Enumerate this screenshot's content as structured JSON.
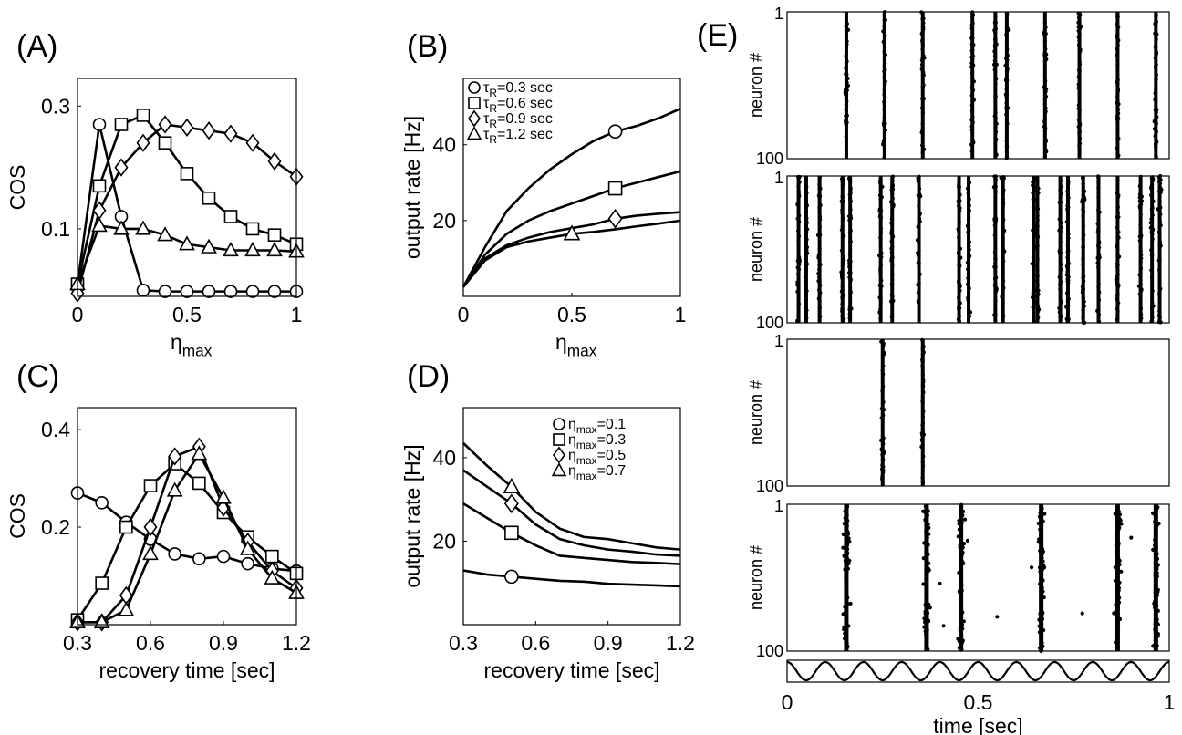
{
  "panels": {
    "A": "(A)",
    "B": "(B)",
    "C": "(C)",
    "D": "(D)",
    "E": "(E)"
  },
  "chart_data": [
    {
      "id": "A",
      "type": "line",
      "ylabel": "COS",
      "xlabel_base": "η",
      "xlabel_sub": "max",
      "xlim": [
        0,
        1
      ],
      "ylim": [
        -0.01,
        0.345
      ],
      "xticks": [
        {
          "v": 0,
          "label": "0"
        },
        {
          "v": 0.5,
          "label": "0.5"
        },
        {
          "v": 1,
          "label": "1"
        }
      ],
      "yticks": [
        {
          "v": 0.1,
          "label": "0.1"
        },
        {
          "v": 0.3,
          "label": "0.3"
        }
      ],
      "marker_type": "param",
      "series": [
        {
          "marker": "circle",
          "x": [
            0,
            0.1,
            0.2,
            0.3,
            0.4,
            0.5,
            0.6,
            0.7,
            0.8,
            0.9,
            1.0
          ],
          "y": [
            0.01,
            0.27,
            0.12,
            0.0,
            -0.002,
            -0.002,
            -0.002,
            -0.002,
            -0.002,
            -0.002,
            -0.002
          ]
        },
        {
          "marker": "square",
          "x": [
            0,
            0.1,
            0.2,
            0.3,
            0.4,
            0.5,
            0.6,
            0.7,
            0.8,
            0.9,
            1.0
          ],
          "y": [
            0.01,
            0.17,
            0.27,
            0.285,
            0.24,
            0.19,
            0.15,
            0.12,
            0.1,
            0.09,
            0.075
          ]
        },
        {
          "marker": "diamond",
          "x": [
            0,
            0.1,
            0.2,
            0.3,
            0.4,
            0.5,
            0.6,
            0.7,
            0.8,
            0.9,
            1.0
          ],
          "y": [
            -0.005,
            0.13,
            0.2,
            0.24,
            0.27,
            0.265,
            0.26,
            0.255,
            0.24,
            0.21,
            0.185
          ]
        },
        {
          "marker": "triangle",
          "x": [
            0,
            0.1,
            0.2,
            0.3,
            0.4,
            0.5,
            0.6,
            0.7,
            0.8,
            0.9,
            1.0
          ],
          "y": [
            0.01,
            0.105,
            0.1,
            0.1,
            0.09,
            0.075,
            0.07,
            0.065,
            0.065,
            0.065,
            0.063
          ]
        }
      ]
    },
    {
      "id": "B",
      "type": "line",
      "ylabel": "output rate [Hz]",
      "xlabel_base": "η",
      "xlabel_sub": "max",
      "xlim": [
        0,
        1
      ],
      "ylim": [
        0,
        57.5
      ],
      "xticks": [
        {
          "v": 0,
          "label": "0"
        },
        {
          "v": 0.5,
          "label": "0.5"
        },
        {
          "v": 1,
          "label": "1"
        }
      ],
      "yticks": [
        {
          "v": 20,
          "label": "20"
        },
        {
          "v": 40,
          "label": "40"
        }
      ],
      "marker_type": "single",
      "legend": [
        {
          "marker": "circle",
          "base": "τ",
          "sub": "R",
          "text": "=0.3 sec"
        },
        {
          "marker": "square",
          "base": "τ",
          "sub": "R",
          "text": "=0.6 sec"
        },
        {
          "marker": "diamond",
          "base": "τ",
          "sub": "R",
          "text": "=0.9 sec"
        },
        {
          "marker": "triangle",
          "base": "τ",
          "sub": "R",
          "text": "=1.2 sec"
        }
      ],
      "series": [
        {
          "marker": "circle",
          "marker_x": 0.7,
          "x": [
            0,
            0.1,
            0.2,
            0.3,
            0.4,
            0.5,
            0.6,
            0.7,
            0.8,
            0.9,
            1.0
          ],
          "y": [
            2.5,
            13,
            22.5,
            28.5,
            33.5,
            37.5,
            41,
            43.5,
            45,
            47,
            49.5
          ]
        },
        {
          "marker": "square",
          "marker_x": 0.7,
          "x": [
            0,
            0.1,
            0.2,
            0.3,
            0.4,
            0.5,
            0.6,
            0.7,
            0.8,
            0.9,
            1.0
          ],
          "y": [
            2.5,
            11,
            16.5,
            20,
            22.5,
            24.5,
            26.5,
            28.5,
            30,
            31.5,
            33
          ]
        },
        {
          "marker": "diamond",
          "marker_x": 0.7,
          "x": [
            0,
            0.1,
            0.2,
            0.3,
            0.4,
            0.5,
            0.6,
            0.7,
            0.8,
            0.9,
            1.0
          ],
          "y": [
            2.5,
            10,
            13.5,
            15.5,
            17,
            18,
            19,
            20.5,
            21.3,
            21.8,
            22.2
          ]
        },
        {
          "marker": "triangle",
          "marker_x": 0.5,
          "x": [
            0,
            0.1,
            0.2,
            0.3,
            0.4,
            0.5,
            0.6,
            0.7,
            0.8,
            0.9,
            1.0
          ],
          "y": [
            2.5,
            9.5,
            13,
            14.5,
            15.5,
            16.5,
            17,
            17.7,
            18.5,
            19.2,
            20
          ]
        }
      ]
    },
    {
      "id": "C",
      "type": "line",
      "ylabel": "COS",
      "xlabel": "recovery time [sec]",
      "xlim": [
        0.3,
        1.2
      ],
      "ylim": [
        0,
        0.445
      ],
      "xticks": [
        {
          "v": 0.3,
          "label": "0.3"
        },
        {
          "v": 0.6,
          "label": "0.6"
        },
        {
          "v": 0.9,
          "label": "0.9"
        },
        {
          "v": 1.2,
          "label": "1.2"
        }
      ],
      "yticks": [
        {
          "v": 0.2,
          "label": "0.2"
        },
        {
          "v": 0.4,
          "label": "0.4"
        }
      ],
      "marker_type": "param",
      "series": [
        {
          "marker": "circle",
          "x": [
            0.3,
            0.4,
            0.5,
            0.6,
            0.7,
            0.8,
            0.9,
            1.0,
            1.1,
            1.2
          ],
          "y": [
            0.27,
            0.25,
            0.21,
            0.175,
            0.145,
            0.135,
            0.14,
            0.125,
            0.115,
            0.11
          ]
        },
        {
          "marker": "square",
          "x": [
            0.3,
            0.4,
            0.5,
            0.6,
            0.7,
            0.8,
            0.9,
            1.0,
            1.1,
            1.2
          ],
          "y": [
            0.01,
            0.085,
            0.2,
            0.285,
            0.33,
            0.29,
            0.23,
            0.18,
            0.14,
            0.105
          ]
        },
        {
          "marker": "diamond",
          "x": [
            0.3,
            0.4,
            0.5,
            0.6,
            0.7,
            0.8,
            0.9,
            1.0,
            1.1,
            1.2
          ],
          "y": [
            0.005,
            0.005,
            0.06,
            0.2,
            0.345,
            0.365,
            0.24,
            0.17,
            0.11,
            0.075
          ]
        },
        {
          "marker": "triangle",
          "x": [
            0.3,
            0.4,
            0.5,
            0.6,
            0.7,
            0.8,
            0.9,
            1.0,
            1.1,
            1.2
          ],
          "y": [
            0.005,
            0.005,
            0.03,
            0.145,
            0.275,
            0.35,
            0.26,
            0.155,
            0.095,
            0.065
          ]
        }
      ]
    },
    {
      "id": "D",
      "type": "line",
      "ylabel": "output rate [Hz]",
      "xlabel": "recovery time [sec]",
      "xlim": [
        0.3,
        1.2
      ],
      "ylim": [
        0,
        52
      ],
      "xticks": [
        {
          "v": 0.3,
          "label": "0.3"
        },
        {
          "v": 0.6,
          "label": "0.6"
        },
        {
          "v": 0.9,
          "label": "0.9"
        },
        {
          "v": 1.2,
          "label": "1.2"
        }
      ],
      "yticks": [
        {
          "v": 20,
          "label": "20"
        },
        {
          "v": 40,
          "label": "40"
        }
      ],
      "marker_type": "single",
      "legend": [
        {
          "marker": "circle",
          "base": "η",
          "sub": "max",
          "text": "=0.1"
        },
        {
          "marker": "square",
          "base": "η",
          "sub": "max",
          "text": "=0.3"
        },
        {
          "marker": "diamond",
          "base": "η",
          "sub": "max",
          "text": "=0.5"
        },
        {
          "marker": "triangle",
          "base": "η",
          "sub": "max",
          "text": "=0.7"
        }
      ],
      "series": [
        {
          "marker": "circle",
          "marker_x": 0.5,
          "x": [
            0.3,
            0.4,
            0.5,
            0.6,
            0.7,
            0.8,
            0.9,
            1.0,
            1.1,
            1.2
          ],
          "y": [
            13,
            12,
            11.5,
            11,
            10.5,
            10.3,
            9.8,
            9.6,
            9.4,
            9.2
          ]
        },
        {
          "marker": "square",
          "marker_x": 0.5,
          "x": [
            0.3,
            0.4,
            0.5,
            0.6,
            0.7,
            0.8,
            0.9,
            1.0,
            1.1,
            1.2
          ],
          "y": [
            29,
            25.5,
            22,
            19,
            16.5,
            16,
            15.5,
            15,
            14.8,
            14.5
          ]
        },
        {
          "marker": "diamond",
          "marker_x": 0.5,
          "x": [
            0.3,
            0.4,
            0.5,
            0.6,
            0.7,
            0.8,
            0.9,
            1.0,
            1.1,
            1.2
          ],
          "y": [
            37,
            33,
            29,
            24,
            20.5,
            19,
            18,
            17.5,
            16.8,
            16.5
          ]
        },
        {
          "marker": "triangle",
          "marker_x": 0.5,
          "x": [
            0.3,
            0.4,
            0.5,
            0.6,
            0.7,
            0.8,
            0.9,
            1.0,
            1.1,
            1.2
          ],
          "y": [
            43.5,
            38,
            33,
            27,
            23,
            21,
            20.5,
            19.5,
            18.5,
            18
          ]
        }
      ]
    },
    {
      "id": "E",
      "type": "scatter",
      "ylabel": "neuron #",
      "xlabel": "time [sec]",
      "xlim": [
        0,
        1
      ],
      "ylim": [
        100,
        1
      ],
      "xticks": [
        {
          "v": 0,
          "label": "0"
        },
        {
          "v": 0.5,
          "label": "0.5"
        },
        {
          "v": 1,
          "label": "1"
        }
      ],
      "ytick_labels": {
        "top": "1",
        "bottom": "100"
      },
      "rasters": [
        {
          "kind": "sync",
          "bursts": [
            0.155,
            0.255,
            0.355,
            0.485,
            0.545,
            0.575,
            0.675,
            0.765,
            0.865,
            0.965
          ]
        },
        {
          "kind": "sync",
          "bursts": [
            0.03,
            0.05,
            0.085,
            0.145,
            0.165,
            0.245,
            0.275,
            0.345,
            0.45,
            0.475,
            0.545,
            0.565,
            0.645,
            0.655,
            0.715,
            0.735,
            0.775,
            0.815,
            0.865,
            0.925,
            0.955,
            0.975
          ]
        },
        {
          "kind": "sync",
          "bursts": [
            0.25,
            0.355
          ]
        },
        {
          "kind": "noisy",
          "bursts": [
            0.155,
            0.365,
            0.455,
            0.665,
            0.865,
            0.965
          ]
        }
      ],
      "stimulus": {
        "type": "sinusoid",
        "cycles": 10
      }
    }
  ]
}
